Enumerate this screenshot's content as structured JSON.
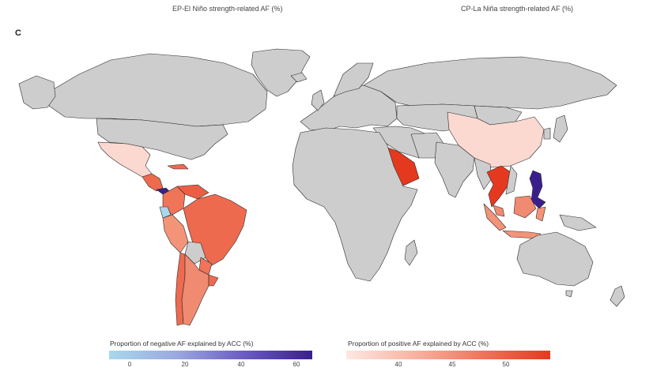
{
  "header": {
    "elnino_label": "EP-El Niño strength-related AF (%)",
    "lanina_label": "CP-La Niña strength-related AF (%)"
  },
  "panel": {
    "letter": "C"
  },
  "legend": {
    "negative": {
      "title": "Proportion of negative AF explained by ACC (%)",
      "ticks": [
        "0",
        "20",
        "40",
        "60"
      ],
      "color_low": "#a9d8ec",
      "color_high": "#3a1f8c"
    },
    "positive": {
      "title": "Proportion of positive AF explained by ACC (%)",
      "ticks": [
        "40",
        "45",
        "50"
      ],
      "color_low": "#fde8e2",
      "color_high": "#e5391f"
    }
  },
  "map": {
    "no_data_color": "#cdcdcd",
    "border_color": "#2a2a2a"
  }
}
